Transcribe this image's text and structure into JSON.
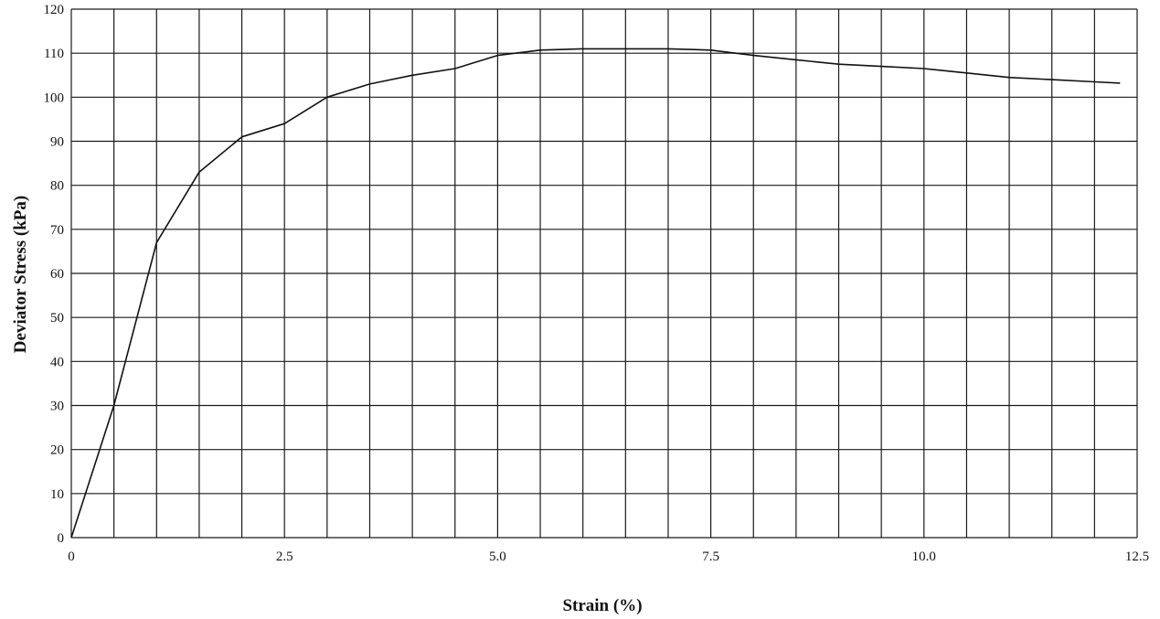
{
  "chart_data": {
    "type": "line",
    "title": "",
    "xlabel": "Strain (%)",
    "ylabel": "Deviator Stress (kPa)",
    "xlim": [
      0,
      12.5
    ],
    "ylim": [
      0,
      120
    ],
    "x_ticks": [
      {
        "value": 0,
        "label": "0"
      },
      {
        "value": 2.5,
        "label": "2.5"
      },
      {
        "value": 5.0,
        "label": "5.0"
      },
      {
        "value": 7.5,
        "label": "7.5"
      },
      {
        "value": 10.0,
        "label": "10.0"
      },
      {
        "value": 12.5,
        "label": "12.5"
      }
    ],
    "y_ticks": [
      {
        "value": 0,
        "label": "0"
      },
      {
        "value": 10,
        "label": "10"
      },
      {
        "value": 20,
        "label": "20"
      },
      {
        "value": 30,
        "label": "30"
      },
      {
        "value": 40,
        "label": "40"
      },
      {
        "value": 50,
        "label": "50"
      },
      {
        "value": 60,
        "label": "60"
      },
      {
        "value": 70,
        "label": "70"
      },
      {
        "value": 80,
        "label": "80"
      },
      {
        "value": 90,
        "label": "90"
      },
      {
        "value": 100,
        "label": "100"
      },
      {
        "value": 110,
        "label": "110"
      },
      {
        "value": 120,
        "label": "120"
      }
    ],
    "grid": true,
    "x_grid_step": 0.5,
    "y_grid_step": 10,
    "series": [
      {
        "x": [
          0,
          0.5,
          1.0,
          1.5,
          2.0,
          2.5,
          3.0,
          3.5,
          4.0,
          4.5,
          5.0,
          5.5,
          6.0,
          6.5,
          7.0,
          7.5,
          8.0,
          8.5,
          9.0,
          9.5,
          10.0,
          10.5,
          11.0,
          11.5,
          12.0,
          12.3
        ],
        "y": [
          0,
          30,
          67,
          83,
          91,
          94,
          100,
          103,
          105,
          106.5,
          109.5,
          110.7,
          111,
          111,
          111,
          110.7,
          109.5,
          108.5,
          107.5,
          107,
          106.5,
          105.5,
          104.5,
          104,
          103.5,
          103.2
        ]
      }
    ],
    "colors": {
      "line": "#111111",
      "grid": "#1a1a1a",
      "background": "#ffffff"
    }
  }
}
